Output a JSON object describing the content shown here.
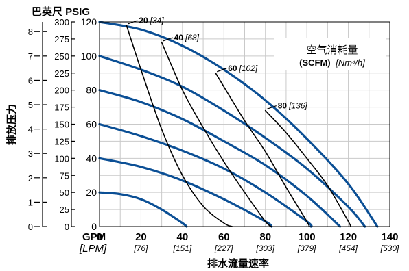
{
  "chart_data": {
    "type": "line",
    "title": "",
    "xlabel": "排水流量速率",
    "xunit_primary": "GPM",
    "xunit_secondary": "[LPM]",
    "xlim": [
      0,
      140
    ],
    "xticks": [
      0,
      20,
      40,
      60,
      80,
      100,
      120,
      140
    ],
    "xticks_secondary": [
      "[76]",
      "[151]",
      "[227]",
      "[303]",
      "[379]",
      "[454]",
      "[530]"
    ],
    "ylabel": "排放压力",
    "yunit_header": "巴英尺 PSIG",
    "ylim": [
      0,
      120
    ],
    "yticks": [
      0,
      20,
      40,
      60,
      80,
      100,
      120
    ],
    "psig_axis": {
      "range": [
        0,
        300
      ],
      "ticks": [
        0,
        25,
        50,
        75,
        100,
        125,
        150,
        175,
        200,
        225,
        250,
        275,
        300
      ]
    },
    "bar_axis": {
      "range": [
        0,
        8.4
      ],
      "ticks": [
        0,
        1,
        2,
        3,
        4,
        5,
        6,
        7,
        8
      ]
    },
    "grid": true,
    "air_legend": {
      "title": "空气消耗量",
      "unit_bold": "(SCFM)",
      "unit_italic": "[Nm³/h]"
    },
    "series": [
      {
        "kind": "pressure",
        "points": [
          [
            0,
            120
          ],
          [
            20,
            115.5
          ],
          [
            40,
            106
          ],
          [
            60,
            92
          ],
          [
            80,
            74
          ],
          [
            100,
            51.5
          ],
          [
            120,
            25
          ],
          [
            134,
            0
          ]
        ]
      },
      {
        "kind": "pressure",
        "points": [
          [
            0,
            100
          ],
          [
            20,
            92
          ],
          [
            40,
            82
          ],
          [
            60,
            68
          ],
          [
            80,
            52
          ],
          [
            100,
            34
          ],
          [
            120,
            11.5
          ],
          [
            128,
            0
          ]
        ]
      },
      {
        "kind": "pressure",
        "points": [
          [
            0,
            80
          ],
          [
            20,
            73
          ],
          [
            40,
            63
          ],
          [
            60,
            50
          ],
          [
            80,
            36
          ],
          [
            100,
            18
          ],
          [
            116,
            0
          ]
        ]
      },
      {
        "kind": "pressure",
        "points": [
          [
            0,
            60
          ],
          [
            20,
            53
          ],
          [
            40,
            44.5
          ],
          [
            60,
            34
          ],
          [
            80,
            20
          ],
          [
            100,
            3
          ],
          [
            102,
            0
          ]
        ]
      },
      {
        "kind": "pressure",
        "points": [
          [
            0,
            40
          ],
          [
            20,
            35
          ],
          [
            40,
            27
          ],
          [
            60,
            16
          ],
          [
            80,
            3
          ],
          [
            83,
            0
          ]
        ]
      },
      {
        "kind": "pressure",
        "points": [
          [
            0,
            20
          ],
          [
            10,
            19
          ],
          [
            20,
            16
          ],
          [
            30,
            10
          ],
          [
            40,
            2
          ],
          [
            42,
            0
          ]
        ]
      },
      {
        "kind": "air",
        "label_bold": "20",
        "label_italic": "[34]",
        "points": [
          [
            13,
            118
          ],
          [
            20,
            92
          ],
          [
            30,
            57
          ],
          [
            40,
            30
          ],
          [
            50,
            12
          ],
          [
            60,
            2
          ],
          [
            64,
            0
          ]
        ]
      },
      {
        "kind": "air",
        "label_bold": "40",
        "label_italic": "[68]",
        "points": [
          [
            30,
            108
          ],
          [
            40,
            80
          ],
          [
            50,
            58
          ],
          [
            60,
            38
          ],
          [
            70,
            20
          ],
          [
            80,
            3
          ],
          [
            83,
            0
          ]
        ]
      },
      {
        "kind": "air",
        "label_bold": "60",
        "label_italic": "[102]",
        "points": [
          [
            56,
            90
          ],
          [
            70,
            62
          ],
          [
            80,
            44
          ],
          [
            90,
            23
          ],
          [
            100,
            3
          ],
          [
            101,
            0
          ]
        ]
      },
      {
        "kind": "air",
        "label_bold": "80",
        "label_italic": "[136]",
        "points": [
          [
            80,
            68
          ],
          [
            90,
            55
          ],
          [
            100,
            40
          ],
          [
            110,
            24
          ],
          [
            120,
            3
          ],
          [
            121,
            0
          ]
        ]
      }
    ]
  }
}
